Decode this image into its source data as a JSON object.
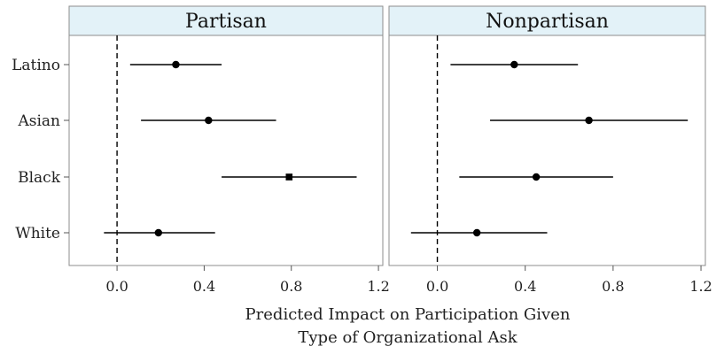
{
  "chart_data": {
    "type": "scatter",
    "subtype": "coefficient-plot-with-intervals",
    "facets": [
      "Partisan",
      "Nonpartisan"
    ],
    "categories": [
      "Latino",
      "Asian",
      "Black",
      "White"
    ],
    "xlabel": [
      "Predicted Impact on Participation Given",
      "Type of Organizational Ask"
    ],
    "xlim": [
      -0.22,
      1.22
    ],
    "xticks": [
      0.0,
      0.4,
      0.8,
      1.2
    ],
    "xtick_labels": [
      "0.0",
      "0.4",
      "0.8",
      "1.2"
    ],
    "reference_line": 0.0,
    "panels": [
      {
        "facet": "Partisan",
        "points": [
          {
            "category": "Latino",
            "estimate": 0.27,
            "lower": 0.06,
            "upper": 0.48,
            "marker": "circle"
          },
          {
            "category": "Asian",
            "estimate": 0.42,
            "lower": 0.11,
            "upper": 0.73,
            "marker": "circle"
          },
          {
            "category": "Black",
            "estimate": 0.79,
            "lower": 0.48,
            "upper": 1.1,
            "marker": "square"
          },
          {
            "category": "White",
            "estimate": 0.19,
            "lower": -0.06,
            "upper": 0.45,
            "marker": "circle"
          }
        ]
      },
      {
        "facet": "Nonpartisan",
        "points": [
          {
            "category": "Latino",
            "estimate": 0.35,
            "lower": 0.06,
            "upper": 0.64,
            "marker": "circle"
          },
          {
            "category": "Asian",
            "estimate": 0.69,
            "lower": 0.24,
            "upper": 1.14,
            "marker": "circle"
          },
          {
            "category": "Black",
            "estimate": 0.45,
            "lower": 0.1,
            "upper": 0.8,
            "marker": "circle"
          },
          {
            "category": "White",
            "estimate": 0.18,
            "lower": -0.12,
            "upper": 0.5,
            "marker": "circle"
          }
        ]
      }
    ],
    "colors": {
      "strip_fill": "#e3f2f8",
      "panel_border": "#8c8c8c",
      "point": "#000000",
      "interval": "#000000",
      "reference_line": "#000000"
    }
  }
}
